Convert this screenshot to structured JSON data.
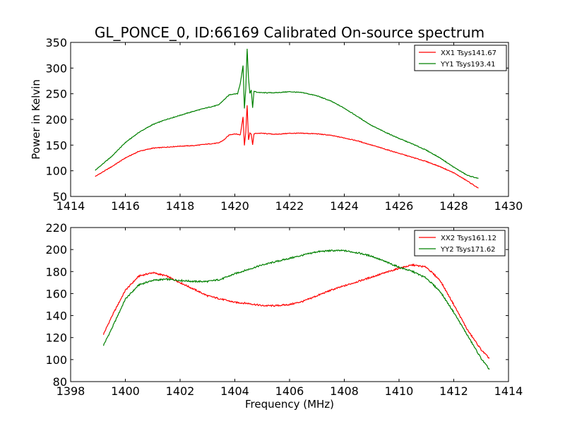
{
  "figure_title": "GL_PONCE_0, ID:66169 Calibrated On-source spectrum",
  "chart_data": [
    {
      "type": "line",
      "title": "GL_PONCE_0, ID:66169 Calibrated On-source spectrum",
      "xlabel": "",
      "ylabel": "Power in Kelvin",
      "xlim": [
        1414,
        1430
      ],
      "ylim": [
        50,
        350
      ],
      "xticks": [
        1414,
        1416,
        1418,
        1420,
        1422,
        1424,
        1426,
        1428,
        1430
      ],
      "yticks": [
        50,
        100,
        150,
        200,
        250,
        300,
        350
      ],
      "xtick_labels": [
        "1414",
        "1416",
        "1418",
        "1420",
        "1422",
        "1424",
        "1426",
        "1428",
        "1430"
      ],
      "ytick_labels": [
        "50",
        "100",
        "150",
        "200",
        "250",
        "300",
        "350"
      ],
      "grid": false,
      "legend_position": "top-right",
      "series": [
        {
          "name": "XX1 Tsys141.67",
          "color": "#ff0000",
          "x": [
            1414.9,
            1415.5,
            1416.0,
            1416.5,
            1417.0,
            1417.5,
            1418.0,
            1418.5,
            1419.0,
            1419.4,
            1419.6,
            1419.8,
            1420.0,
            1420.2,
            1420.3,
            1420.35,
            1420.4,
            1420.45,
            1420.5,
            1420.55,
            1420.6,
            1420.65,
            1420.7,
            1420.8,
            1421.0,
            1421.5,
            1422.0,
            1422.5,
            1423.0,
            1423.5,
            1424.0,
            1424.5,
            1425.0,
            1425.5,
            1426.0,
            1426.5,
            1427.0,
            1427.5,
            1428.0,
            1428.5,
            1428.9
          ],
          "y": [
            89,
            108,
            125,
            138,
            144,
            146,
            148,
            149,
            152,
            154,
            160,
            170,
            172,
            170,
            205,
            150,
            175,
            228,
            160,
            173,
            172,
            150,
            172,
            173,
            173,
            171,
            173,
            173,
            172,
            169,
            164,
            158,
            150,
            142,
            134,
            126,
            118,
            108,
            96,
            80,
            66
          ]
        },
        {
          "name": "YY1 Tsys193.41",
          "color": "#008000",
          "x": [
            1414.9,
            1415.5,
            1416.0,
            1416.5,
            1417.0,
            1417.5,
            1418.0,
            1418.5,
            1419.0,
            1419.4,
            1419.6,
            1419.8,
            1420.0,
            1420.1,
            1420.2,
            1420.3,
            1420.35,
            1420.4,
            1420.45,
            1420.5,
            1420.55,
            1420.6,
            1420.65,
            1420.7,
            1420.8,
            1421.0,
            1421.5,
            1422.0,
            1422.5,
            1423.0,
            1423.5,
            1424.0,
            1424.5,
            1425.0,
            1425.5,
            1426.0,
            1426.5,
            1427.0,
            1427.5,
            1428.0,
            1428.5,
            1428.9
          ],
          "y": [
            101,
            128,
            155,
            175,
            190,
            200,
            208,
            216,
            223,
            228,
            238,
            248,
            250,
            250,
            270,
            305,
            222,
            260,
            338,
            280,
            250,
            258,
            222,
            255,
            253,
            252,
            252,
            254,
            252,
            246,
            236,
            222,
            205,
            188,
            175,
            163,
            152,
            140,
            125,
            107,
            91,
            85
          ]
        }
      ]
    },
    {
      "type": "line",
      "title": "",
      "xlabel": "Frequency (MHz)",
      "ylabel": "",
      "xlim": [
        1398,
        1414
      ],
      "ylim": [
        80,
        220
      ],
      "xticks": [
        1398,
        1400,
        1402,
        1404,
        1406,
        1408,
        1410,
        1412,
        1414
      ],
      "yticks": [
        80,
        100,
        120,
        140,
        160,
        180,
        200,
        220
      ],
      "xtick_labels": [
        "1398",
        "1400",
        "1402",
        "1404",
        "1406",
        "1408",
        "1410",
        "1412",
        "1414"
      ],
      "ytick_labels": [
        "80",
        "100",
        "120",
        "140",
        "160",
        "180",
        "200",
        "220"
      ],
      "grid": false,
      "legend_position": "top-right",
      "series": [
        {
          "name": "XX2 Tsys161.12",
          "color": "#ff0000",
          "x": [
            1399.2,
            1399.5,
            1400.0,
            1400.5,
            1401.0,
            1401.5,
            1402.0,
            1402.5,
            1403.0,
            1403.5,
            1404.0,
            1404.5,
            1405.0,
            1405.5,
            1406.0,
            1406.5,
            1407.0,
            1407.5,
            1408.0,
            1408.5,
            1409.0,
            1409.5,
            1410.0,
            1410.5,
            1411.0,
            1411.5,
            1412.0,
            1412.5,
            1413.0,
            1413.3
          ],
          "y": [
            123,
            139,
            163,
            176,
            179,
            176,
            170,
            164,
            158,
            155,
            152,
            151,
            149,
            149,
            150,
            153,
            158,
            163,
            167,
            171,
            175,
            179,
            183,
            186,
            184,
            172,
            150,
            127,
            109,
            101
          ]
        },
        {
          "name": "YY2 Tsys171.62",
          "color": "#008000",
          "x": [
            1399.2,
            1399.5,
            1400.0,
            1400.5,
            1401.0,
            1401.5,
            1402.0,
            1402.5,
            1403.0,
            1403.5,
            1404.0,
            1404.5,
            1405.0,
            1405.5,
            1406.0,
            1406.5,
            1407.0,
            1407.5,
            1408.0,
            1408.5,
            1409.0,
            1409.5,
            1410.0,
            1410.5,
            1411.0,
            1411.5,
            1412.0,
            1412.5,
            1413.0,
            1413.3
          ],
          "y": [
            113,
            128,
            155,
            168,
            172,
            173,
            172,
            171,
            171,
            173,
            178,
            182,
            186,
            189,
            192,
            195,
            198,
            199,
            199,
            197,
            194,
            189,
            184,
            180,
            174,
            162,
            143,
            122,
            101,
            91
          ]
        }
      ]
    }
  ]
}
